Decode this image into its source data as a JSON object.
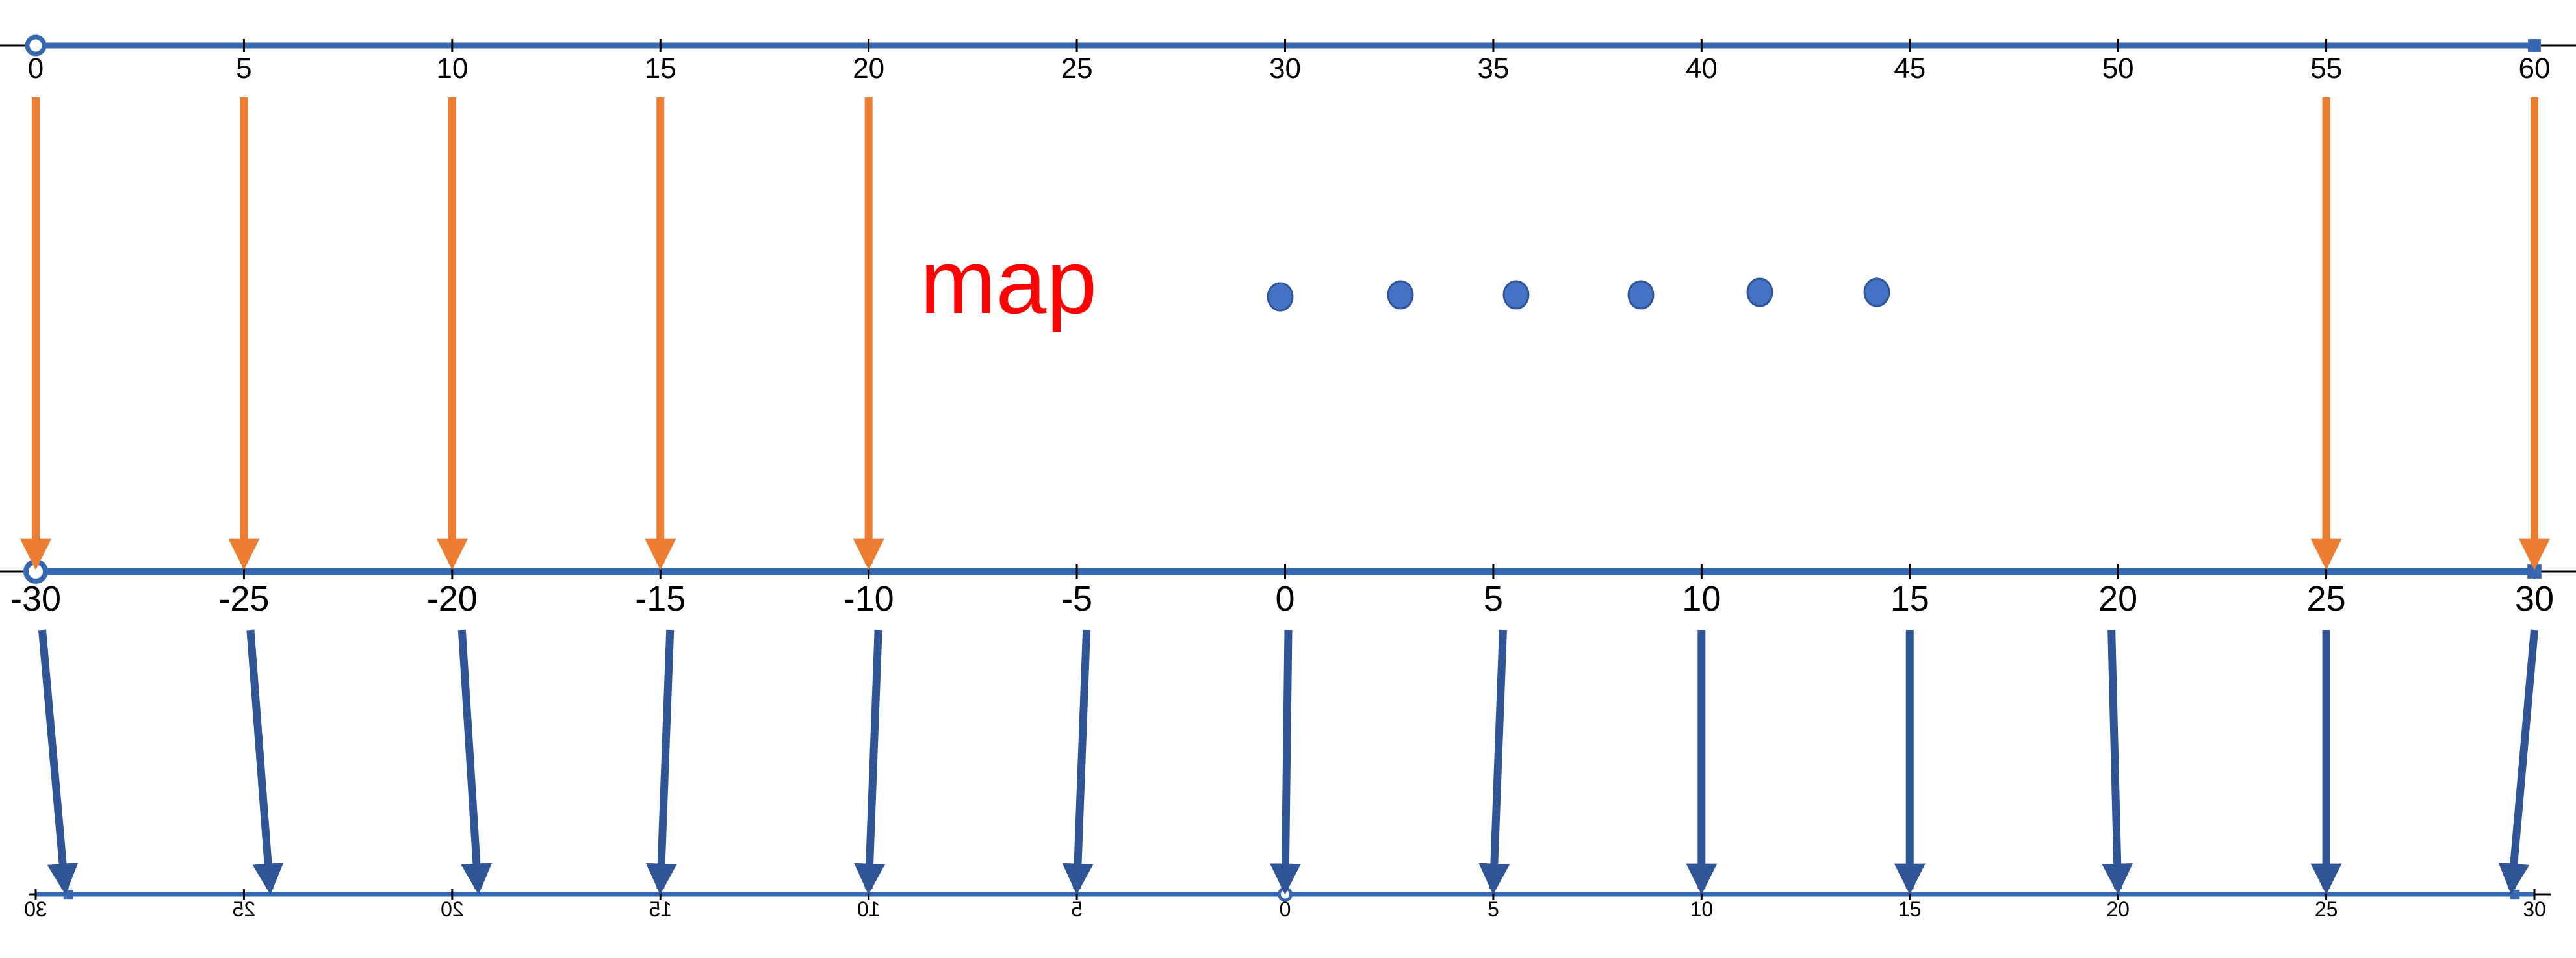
{
  "title": "map",
  "colors": {
    "line": "#3568b0",
    "axis": "#000000",
    "orange_arrow": "#ed7d31",
    "blue_arrow": "#2f5597",
    "dot_fill": "#4472c4",
    "dot_stroke": "#2f5597",
    "title": "#ff0000"
  },
  "lines": {
    "top": {
      "ticks": [
        0,
        5,
        10,
        15,
        20,
        25,
        30,
        35,
        40,
        45,
        50,
        55,
        60
      ],
      "labels": [
        "0",
        "5",
        "10",
        "15",
        "20",
        "25",
        "30",
        "35",
        "40",
        "45",
        "50",
        "55",
        "60"
      ],
      "range": [
        0,
        60
      ],
      "endpoint_left": "open",
      "endpoint_right": "closed"
    },
    "middle": {
      "ticks": [
        -30,
        -25,
        -20,
        -15,
        -10,
        -5,
        0,
        5,
        10,
        15,
        20,
        25,
        30
      ],
      "labels": [
        "-30",
        "-25",
        "-20",
        "-15",
        "-10",
        "-5",
        "0",
        "5",
        "10",
        "15",
        "20",
        "25",
        "30"
      ],
      "range": [
        -30,
        30
      ],
      "endpoint_left": "open",
      "endpoint_right": "closed"
    },
    "bottom": {
      "ticks": [
        -30,
        -25,
        -20,
        -15,
        -10,
        -5,
        0,
        5,
        10,
        15,
        20,
        25,
        30
      ],
      "labels": [
        "30",
        "25",
        "20",
        "15",
        "10",
        "5",
        "0",
        "5",
        "10",
        "15",
        "20",
        "25",
        "30"
      ],
      "mirrored_labels": [
        true,
        true,
        true,
        true,
        true,
        true,
        false,
        false,
        false,
        false,
        false,
        false,
        false
      ],
      "endpoint_center": "open",
      "endpoint_left": "closed",
      "endpoint_right": "closed"
    }
  },
  "orange_arrows_from_top": [
    0,
    5,
    10,
    15,
    20,
    55,
    60
  ],
  "blue_arrows": [
    {
      "from": -30,
      "to": -30
    },
    {
      "from": -25,
      "to": -25
    },
    {
      "from": -20,
      "to": -20
    },
    {
      "from": -15,
      "to": -15
    },
    {
      "from": -10,
      "to": -10
    },
    {
      "from": -5,
      "to": -5
    },
    {
      "from": 0,
      "to": 0
    },
    {
      "from": 5,
      "to": 5
    },
    {
      "from": 10,
      "to": 10
    },
    {
      "from": 15,
      "to": 15
    },
    {
      "from": 20,
      "to": 20
    },
    {
      "from": 25,
      "to": 25
    },
    {
      "from": 30,
      "to": 30
    }
  ],
  "ellipsis_dots": 6
}
